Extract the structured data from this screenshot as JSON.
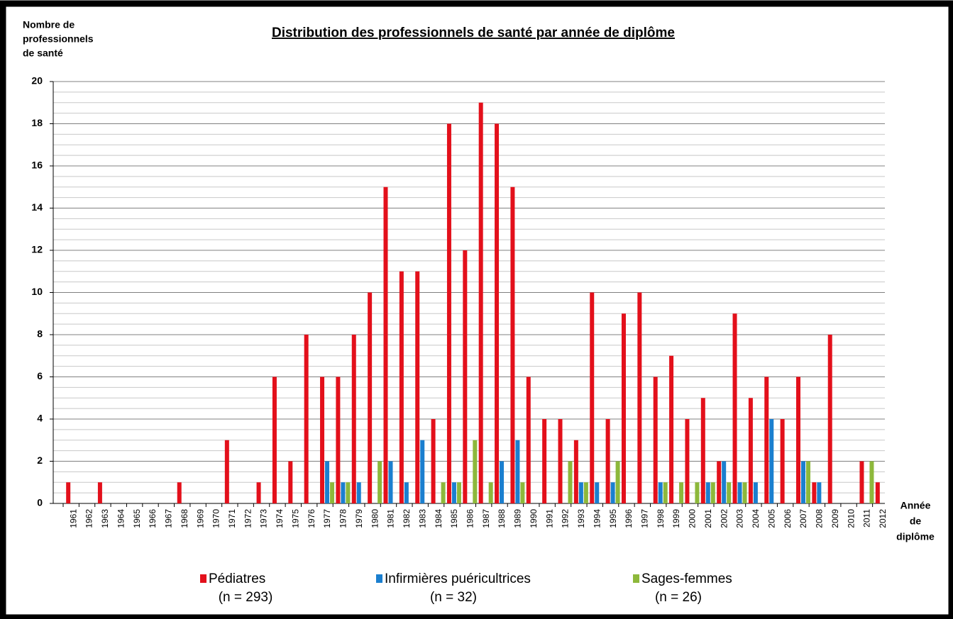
{
  "chart_data": {
    "type": "bar",
    "title": "Distribution des professionnels de santé par année de diplôme",
    "y_label": [
      "Nombre de",
      "professionnels",
      "de santé"
    ],
    "x_label": [
      "Année",
      "de",
      "diplôme"
    ],
    "categories": [
      "1961",
      "1962",
      "1963",
      "1964",
      "1965",
      "1966",
      "1967",
      "1968",
      "1969",
      "1970",
      "1971",
      "1972",
      "1973",
      "1974",
      "1975",
      "1976",
      "1977",
      "1978",
      "1979",
      "1980",
      "1981",
      "1982",
      "1983",
      "1984",
      "1985",
      "1986",
      "1987",
      "1988",
      "1989",
      "1990",
      "1991",
      "1992",
      "1993",
      "1994",
      "1995",
      "1996",
      "1997",
      "1998",
      "1999",
      "2000",
      "2001",
      "2002",
      "2003",
      "2004",
      "2005",
      "2006",
      "2007",
      "2008",
      "2009",
      "2010",
      "2011",
      "2012"
    ],
    "series": [
      {
        "name": "Pédiatres",
        "legend_sub": "(n = 293)",
        "color": "#e3101b",
        "values": [
          1,
          0,
          1,
          0,
          0,
          0,
          0,
          1,
          0,
          0,
          3,
          0,
          1,
          6,
          2,
          8,
          6,
          6,
          8,
          10,
          15,
          11,
          11,
          4,
          18,
          12,
          19,
          18,
          15,
          6,
          4,
          4,
          3,
          10,
          4,
          9,
          10,
          6,
          7,
          4,
          5,
          2,
          9,
          5,
          6,
          4,
          6,
          1,
          8,
          0,
          2,
          1
        ]
      },
      {
        "name": "Infirmières puéricultrices",
        "legend_sub": "(n = 32)",
        "color": "#1b7fcf",
        "values": [
          0,
          0,
          0,
          0,
          0,
          0,
          0,
          0,
          0,
          0,
          0,
          0,
          0,
          0,
          0,
          0,
          2,
          1,
          1,
          0,
          2,
          1,
          3,
          0,
          1,
          0,
          0,
          2,
          3,
          0,
          0,
          0,
          1,
          1,
          1,
          0,
          0,
          1,
          0,
          0,
          1,
          2,
          1,
          1,
          4,
          0,
          2,
          1,
          0,
          0,
          0,
          0
        ]
      },
      {
        "name": "Sages-femmes",
        "legend_sub": "(n = 26)",
        "color": "#8db83b",
        "values": [
          0,
          0,
          0,
          0,
          0,
          0,
          0,
          0,
          0,
          0,
          0,
          0,
          0,
          0,
          0,
          0,
          1,
          1,
          0,
          2,
          0,
          0,
          0,
          1,
          1,
          3,
          1,
          0,
          1,
          0,
          0,
          2,
          1,
          0,
          2,
          0,
          0,
          1,
          1,
          1,
          1,
          1,
          1,
          0,
          0,
          0,
          2,
          0,
          0,
          0,
          2,
          0
        ]
      }
    ],
    "ylim": [
      0,
      20
    ],
    "yticks": [
      0,
      2,
      4,
      6,
      8,
      10,
      12,
      14,
      16,
      18,
      20
    ],
    "grid": true
  }
}
